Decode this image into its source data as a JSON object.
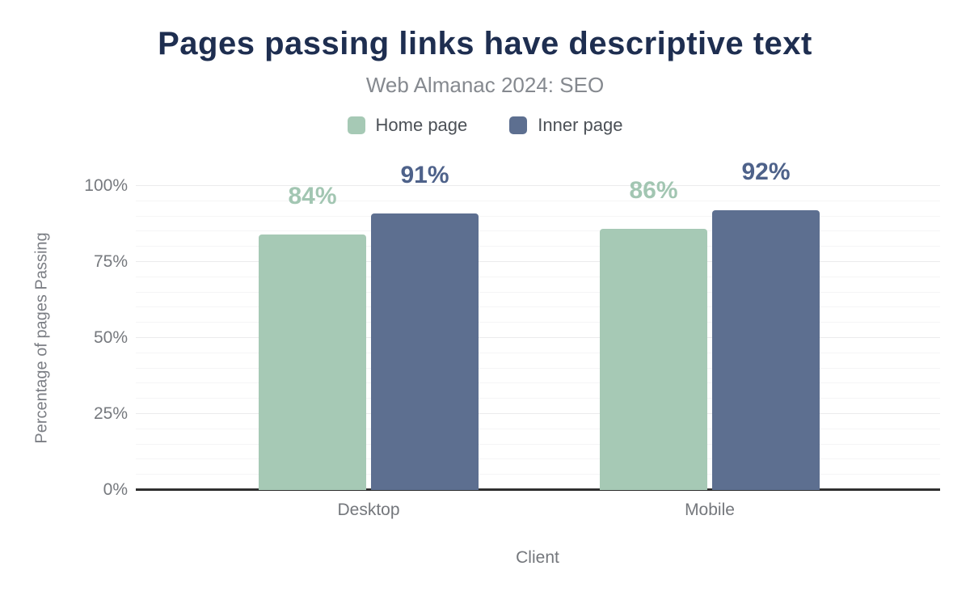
{
  "chart_data": {
    "type": "bar",
    "title": "Pages passing links have descriptive text",
    "subtitle": "Web Almanac 2024: SEO",
    "categories": [
      "Desktop",
      "Mobile"
    ],
    "series": [
      {
        "name": "Home page",
        "values": [
          84,
          86
        ],
        "color": "#a6c9b5",
        "label_color": "#a2c6b2"
      },
      {
        "name": "Inner page",
        "values": [
          91,
          92
        ],
        "color": "#5d6f90",
        "label_color": "#4e628a"
      }
    ],
    "data_label_suffix": "%",
    "xlabel": "Client",
    "ylabel": "Percentage of pages Passing",
    "ylim": [
      0,
      100
    ],
    "yticks": [
      0,
      25,
      50,
      75,
      100
    ],
    "ytick_suffix": "%",
    "grid": {
      "orientation": "horizontal",
      "minor_step": 5,
      "major_step": 25
    },
    "legend_position": "top"
  },
  "colors": {
    "background": "#ffffff",
    "title": "#1e2e50",
    "subtitle": "#85898f",
    "legend_text": "#4c5157",
    "axis_text": "#76797e",
    "grid_minor": "#f5f5f6",
    "grid_major": "#ebebec",
    "baseline": "#2f2f2f"
  }
}
